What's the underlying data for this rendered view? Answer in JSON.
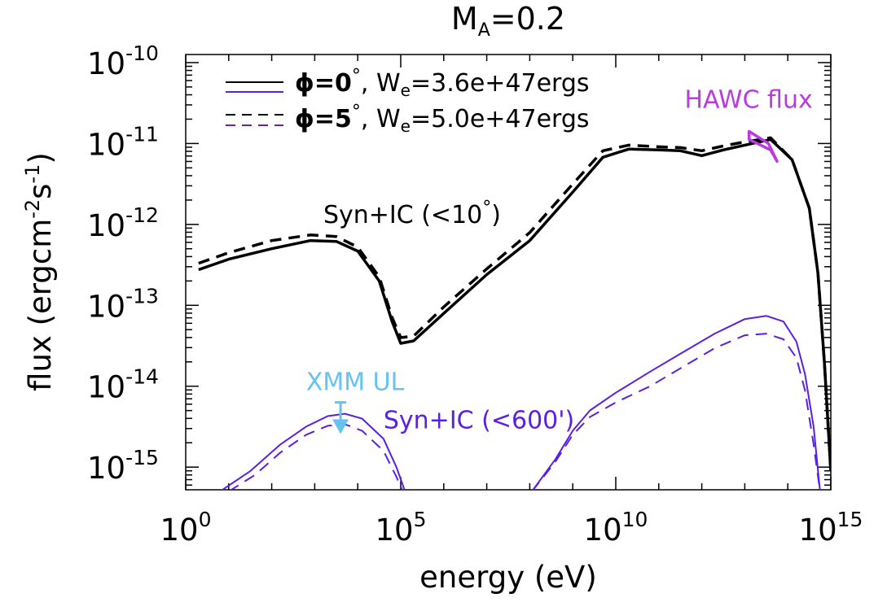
{
  "chart_data": {
    "type": "line",
    "title": "M_A=0.2",
    "title_parts": {
      "base": "M",
      "sub": "A",
      "rest": "=0.2"
    },
    "xlabel": "energy (eV)",
    "ylabel": "flux (ergcm^-2 s^-1)",
    "ylabel_parts": {
      "a": "flux (ergcm",
      "b": "-2",
      "c": "s",
      "d": "-1",
      "e": ")"
    },
    "xscale": "log",
    "yscale": "log",
    "xlim_log10": [
      0,
      15
    ],
    "ylim_log10": [
      -15.28,
      -9.9
    ],
    "x_ticks": [
      {
        "log": 0,
        "base": "10",
        "exp": "0"
      },
      {
        "log": 5,
        "base": "10",
        "exp": "5"
      },
      {
        "log": 10,
        "base": "10",
        "exp": "10"
      },
      {
        "log": 15,
        "base": "10",
        "exp": "15"
      }
    ],
    "y_ticks": [
      {
        "log": -10,
        "base": "10",
        "exp": "-10"
      },
      {
        "log": -11,
        "base": "10",
        "exp": "-11"
      },
      {
        "log": -12,
        "base": "10",
        "exp": "-12"
      },
      {
        "log": -13,
        "base": "10",
        "exp": "-13"
      },
      {
        "log": -14,
        "base": "10",
        "exp": "-14"
      },
      {
        "log": -15,
        "base": "10",
        "exp": "-15"
      }
    ],
    "legend": [
      {
        "style": "solid",
        "phi_label": "ϕ=0",
        "deg": "°",
        "w_text": ", W",
        "w_sub": "e",
        "w_value": "=3.6e+47ergs"
      },
      {
        "style": "dashed",
        "phi_label": "ϕ=5",
        "deg": "°",
        "w_text": ", W",
        "w_sub": "e",
        "w_value": "=5.0e+47ergs"
      }
    ],
    "series": [
      {
        "name": "Syn+IC (<10°) phi=0",
        "color": "#000000",
        "style": "solid",
        "width": 3.5,
        "points": [
          [
            0.3,
            -12.56
          ],
          [
            1,
            -12.43
          ],
          [
            2,
            -12.3
          ],
          [
            2.9,
            -12.2
          ],
          [
            3.5,
            -12.21
          ],
          [
            4,
            -12.33
          ],
          [
            4.5,
            -12.7
          ],
          [
            4.8,
            -13.2
          ],
          [
            5,
            -13.47
          ],
          [
            5.3,
            -13.44
          ],
          [
            6,
            -13.1
          ],
          [
            7,
            -12.62
          ],
          [
            8,
            -12.2
          ],
          [
            9,
            -11.6
          ],
          [
            9.7,
            -11.17
          ],
          [
            10.3,
            -11.07
          ],
          [
            11,
            -11.08
          ],
          [
            11.5,
            -11.09
          ],
          [
            12,
            -11.15
          ],
          [
            12.5,
            -11.08
          ],
          [
            13,
            -11.02
          ],
          [
            13.6,
            -10.95
          ],
          [
            14.1,
            -11.2
          ],
          [
            14.5,
            -11.8
          ],
          [
            14.7,
            -12.6
          ],
          [
            14.85,
            -13.7
          ],
          [
            15,
            -15.05
          ]
        ]
      },
      {
        "name": "Syn+IC (<10°) phi=5",
        "color": "#000000",
        "style": "dashed",
        "width": 3.5,
        "points": [
          [
            0.3,
            -12.48
          ],
          [
            1,
            -12.35
          ],
          [
            2,
            -12.2
          ],
          [
            2.9,
            -12.13
          ],
          [
            3.5,
            -12.15
          ],
          [
            4,
            -12.28
          ],
          [
            4.5,
            -12.65
          ],
          [
            4.8,
            -13.15
          ],
          [
            5,
            -13.4
          ],
          [
            5.3,
            -13.38
          ],
          [
            6,
            -13.02
          ],
          [
            7,
            -12.55
          ],
          [
            8,
            -12.1
          ],
          [
            9,
            -11.5
          ],
          [
            9.7,
            -11.09
          ],
          [
            10.3,
            -11.02
          ],
          [
            11,
            -11.04
          ],
          [
            11.5,
            -11.05
          ],
          [
            12,
            -11.09
          ],
          [
            12.5,
            -11.03
          ],
          [
            13,
            -10.98
          ],
          [
            13.6,
            -10.93
          ],
          [
            14.1,
            -11.2
          ],
          [
            14.5,
            -11.8
          ],
          [
            14.7,
            -12.6
          ],
          [
            14.85,
            -13.7
          ],
          [
            15,
            -15.05
          ]
        ]
      },
      {
        "name": "Syn+IC (<600') phi=0",
        "color": "#5a1fe6",
        "style": "solid",
        "width": 2,
        "points": [
          [
            0.8,
            -15.3
          ],
          [
            1.5,
            -15.05
          ],
          [
            2.2,
            -14.72
          ],
          [
            2.8,
            -14.5
          ],
          [
            3.3,
            -14.37
          ],
          [
            3.7,
            -14.34
          ],
          [
            4.1,
            -14.4
          ],
          [
            4.6,
            -14.65
          ],
          [
            4.9,
            -15.0
          ],
          [
            5.1,
            -15.3
          ]
        ]
      },
      {
        "name": "Syn+IC (<600') phi=5",
        "color": "#5a1fe6",
        "style": "dashed",
        "width": 2,
        "points": [
          [
            1,
            -15.3
          ],
          [
            1.6,
            -15.1
          ],
          [
            2.2,
            -14.82
          ],
          [
            2.8,
            -14.6
          ],
          [
            3.3,
            -14.49
          ],
          [
            3.7,
            -14.47
          ],
          [
            4.1,
            -14.55
          ],
          [
            4.6,
            -14.8
          ],
          [
            4.9,
            -15.12
          ],
          [
            5.05,
            -15.3
          ]
        ]
      },
      {
        "name": "Syn+IC (<600') upper phi=0",
        "color": "#5a1fe6",
        "style": "solid",
        "width": 2,
        "points": [
          [
            8.05,
            -15.3
          ],
          [
            8.6,
            -14.9
          ],
          [
            9,
            -14.55
          ],
          [
            9.4,
            -14.3
          ],
          [
            10,
            -14.08
          ],
          [
            10.8,
            -13.82
          ],
          [
            11.5,
            -13.6
          ],
          [
            12.3,
            -13.35
          ],
          [
            13,
            -13.17
          ],
          [
            13.5,
            -13.13
          ],
          [
            13.9,
            -13.2
          ],
          [
            14.2,
            -13.45
          ],
          [
            14.4,
            -13.85
          ],
          [
            14.6,
            -14.5
          ],
          [
            14.75,
            -15.3
          ]
        ]
      },
      {
        "name": "Syn+IC (<600') upper phi=5",
        "color": "#5a1fe6",
        "style": "dashed",
        "width": 2,
        "points": [
          [
            8.05,
            -15.3
          ],
          [
            8.6,
            -14.93
          ],
          [
            9,
            -14.6
          ],
          [
            9.4,
            -14.38
          ],
          [
            10,
            -14.2
          ],
          [
            10.8,
            -14.0
          ],
          [
            11.5,
            -13.78
          ],
          [
            12.3,
            -13.53
          ],
          [
            13,
            -13.37
          ],
          [
            13.5,
            -13.35
          ],
          [
            13.9,
            -13.42
          ],
          [
            14.2,
            -13.65
          ],
          [
            14.4,
            -14.05
          ],
          [
            14.6,
            -14.72
          ],
          [
            14.75,
            -15.3
          ]
        ]
      }
    ],
    "hawc_bowtie": {
      "color": "#b83be0",
      "points": [
        [
          13.1,
          -10.85
        ],
        [
          13.55,
          -11.0
        ],
        [
          13.75,
          -11.22
        ],
        [
          13.6,
          -11.08
        ],
        [
          13.1,
          -10.95
        ]
      ]
    },
    "xmm_ul": {
      "color": "#66c2f2",
      "x_log": 3.6,
      "y_log": -14.2,
      "arrow_to_log": -14.55
    },
    "annotations": [
      {
        "name": "syn-ic-10-label",
        "text": "Syn+IC (<10",
        "deg": "°",
        "close": ")",
        "color": "#000000",
        "x_log": 3.2,
        "y_log": -11.98
      },
      {
        "name": "hawc-flux-label",
        "text": "HAWC flux",
        "color": "#b83be0",
        "x_log": 11.6,
        "y_log": -10.56
      },
      {
        "name": "xmm-ul-label",
        "text": "XMM UL",
        "color": "#66c2f2",
        "x_log": 2.8,
        "y_log": -14.05
      },
      {
        "name": "syn-ic-600-label",
        "text": "Syn+IC (<600')",
        "color": "#5a1fe6",
        "x_log": 4.6,
        "y_log": -14.52
      }
    ]
  }
}
